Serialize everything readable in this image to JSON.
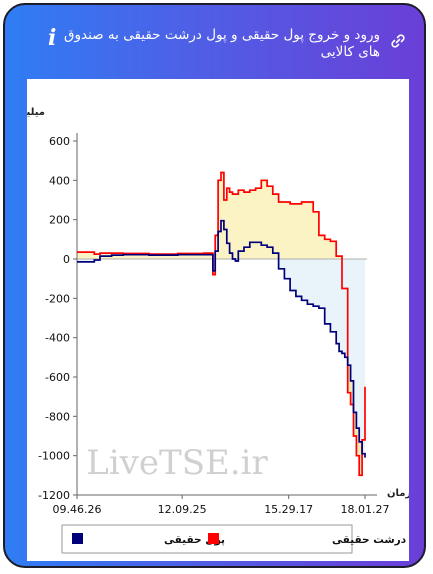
{
  "header": {
    "title": "ورود و خروج پول حقیقی و پول درشت حقیقی به صندوق های کالایی",
    "info_icon": "info-icon",
    "link_icon": "link-icon"
  },
  "colors": {
    "gradient_start": "#2f7df4",
    "gradient_end": "#6a3fd7",
    "real_money": "#00007a",
    "big_real_money": "#ff0000",
    "fill_positive": "#fbf3c4",
    "fill_negative": "#e9f4fa",
    "fill_tail": "#efe9b4"
  },
  "chart_data": {
    "type": "line",
    "ylabel": "میلیارد تومان",
    "xlabel": "زمان",
    "ylim": [
      -1200,
      600
    ],
    "yticks": [
      600,
      400,
      200,
      0,
      -200,
      -400,
      -600,
      -800,
      -1000,
      -1200
    ],
    "xticks": [
      "09.46.26",
      "12.09.25",
      "15.29.17",
      "18.01.27"
    ],
    "watermark": "LiveTSE.ir",
    "x_range": [
      0,
      100
    ],
    "series": [
      {
        "name": "پول حقیقی",
        "color": "#00007a",
        "x": [
          0,
          4,
          6,
          8,
          12,
          16,
          20,
          25,
          30,
          35,
          40,
          44,
          46,
          47.2,
          48,
          49,
          50,
          51,
          52,
          53,
          54,
          55,
          56,
          58,
          60,
          62,
          64,
          66,
          68,
          70,
          72,
          74,
          76,
          78,
          80,
          82,
          84,
          86,
          88,
          90,
          91,
          92,
          93,
          94,
          95,
          96,
          97,
          98,
          99,
          100
        ],
        "y": [
          -15,
          -15,
          -5,
          15,
          20,
          22,
          22,
          20,
          20,
          22,
          22,
          22,
          22,
          -60,
          40,
          140,
          195,
          150,
          80,
          30,
          0,
          -10,
          40,
          60,
          85,
          85,
          70,
          60,
          30,
          -50,
          -100,
          -160,
          -190,
          -210,
          -230,
          -240,
          -250,
          -330,
          -370,
          -430,
          -470,
          -480,
          -500,
          -540,
          -620,
          -780,
          -860,
          -930,
          -990,
          -1010
        ]
      },
      {
        "name": "پول درشت حقیقی",
        "color": "#ff0000",
        "x": [
          0,
          4,
          6,
          8,
          12,
          16,
          20,
          25,
          30,
          35,
          40,
          44,
          46,
          47.2,
          48,
          49,
          50,
          51,
          52,
          53,
          54,
          56,
          58,
          60,
          62,
          64,
          66,
          68,
          70,
          72,
          74,
          76,
          78,
          80,
          82,
          84,
          86,
          88,
          90,
          92,
          94,
          95,
          96,
          97,
          98,
          99,
          100
        ],
        "y": [
          35,
          35,
          25,
          30,
          30,
          28,
          28,
          25,
          25,
          28,
          28,
          30,
          30,
          -80,
          120,
          400,
          440,
          300,
          360,
          340,
          330,
          350,
          340,
          350,
          360,
          400,
          370,
          330,
          290,
          290,
          280,
          280,
          290,
          290,
          240,
          120,
          100,
          90,
          15,
          -150,
          -680,
          -740,
          -900,
          -1000,
          -1100,
          -920,
          -650
        ]
      }
    ],
    "legend": [
      {
        "label": "پول حقیقی",
        "color": "#00007a"
      },
      {
        "label": "پول درشت حقیقی",
        "color": "#ff0000"
      }
    ]
  }
}
